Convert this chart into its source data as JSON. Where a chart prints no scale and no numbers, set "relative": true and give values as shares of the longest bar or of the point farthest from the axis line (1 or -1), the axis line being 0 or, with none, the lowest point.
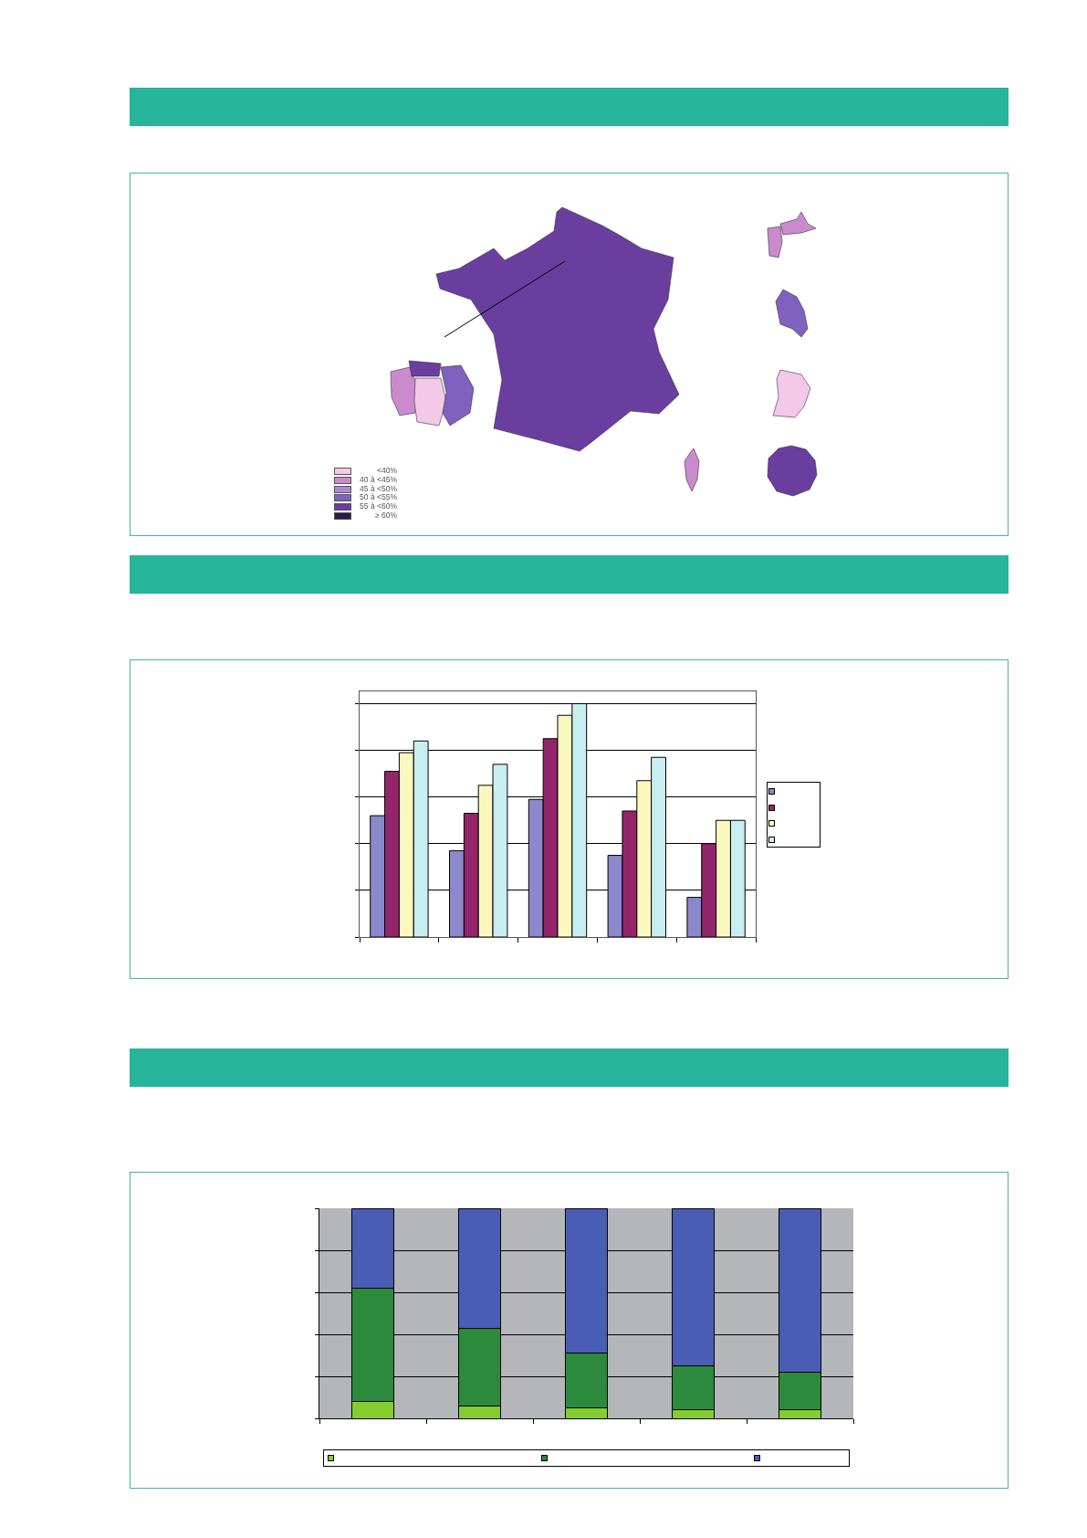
{
  "chart_data": [
    {
      "type": "other",
      "categories": [
        "<40%",
        "40 à <45%",
        "45 à <50%",
        "50 à <55%",
        "55 à <60%",
        "≥ 60%"
      ]
    },
    {
      "type": "bar",
      "relative": true,
      "categories": [
        null,
        null,
        null,
        null,
        null
      ],
      "series": [
        {
          "color": "#8b88cc",
          "values": [
            0.52,
            0.37,
            0.59,
            0.35,
            0.17
          ]
        },
        {
          "color": "#93266a",
          "values": [
            0.71,
            0.53,
            0.85,
            0.54,
            0.4
          ]
        },
        {
          "color": "#fbf8bf",
          "values": [
            0.79,
            0.65,
            0.95,
            0.67,
            0.5
          ]
        },
        {
          "color": "#c9eef0",
          "values": [
            0.84,
            0.74,
            1,
            0.77,
            0.5
          ]
        }
      ],
      "grid": "y"
    },
    {
      "type": "bar",
      "relative": true,
      "stacked": true,
      "categories": [
        null,
        null,
        null,
        null,
        null
      ],
      "series": [
        {
          "color": "#86cc2e",
          "values": [
            0.08,
            0.06,
            0.05,
            0.04,
            0.04
          ]
        },
        {
          "color": "#2b8a3c",
          "values": [
            0.54,
            0.37,
            0.26,
            0.21,
            0.18
          ]
        },
        {
          "color": "#4a5db5",
          "values": [
            0.38,
            0.57,
            0.69,
            0.75,
            0.78
          ]
        }
      ],
      "grid": "y"
    }
  ]
}
